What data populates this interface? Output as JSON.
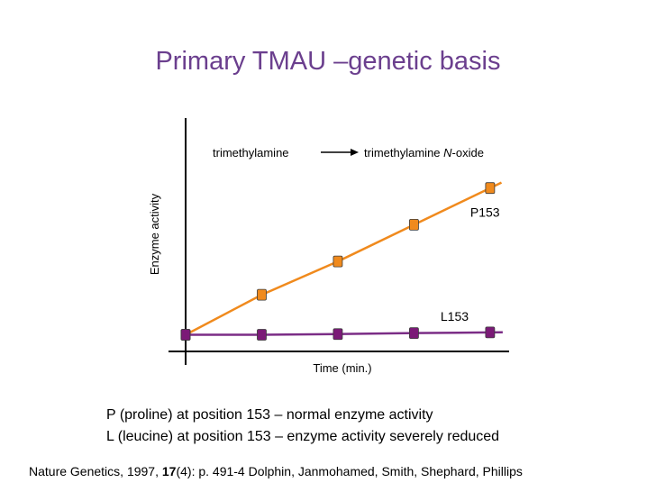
{
  "slide": {
    "title": "Primary TMAU –genetic basis",
    "caption_lines": [
      "P (proline) at position 153 – normal enzyme activity",
      "L (leucine) at position 153 – enzyme activity severely reduced"
    ],
    "citation": {
      "prefix": "Nature Genetics, 1997, ",
      "volume": "17",
      "rest": "(4): p. 491-4   Dolphin, Janmohamed, Smith, Shephard, Phillips"
    }
  },
  "chart_data": {
    "type": "line",
    "xlabel": "Time (min.)",
    "ylabel": "Enzyme activity",
    "reaction": {
      "substrate": "trimethylamine",
      "product_prefix": "trimethylamine ",
      "product_italic": "N",
      "product_suffix": "-oxide"
    },
    "x": [
      0,
      1,
      2,
      3,
      4
    ],
    "series": [
      {
        "name": "P153",
        "color": "#f08a1d",
        "marker_color": "#f08a1d",
        "values": [
          0,
          1.2,
          2.2,
          3.3,
          4.4
        ]
      },
      {
        "name": "L153",
        "color": "#7b2d86",
        "marker_color": "#7b1a77",
        "values": [
          0,
          0,
          0.02,
          0.05,
          0.07
        ]
      }
    ],
    "xlim": [
      0,
      4.25
    ],
    "ylim": [
      -0.5,
      6.5
    ],
    "grid": false
  }
}
